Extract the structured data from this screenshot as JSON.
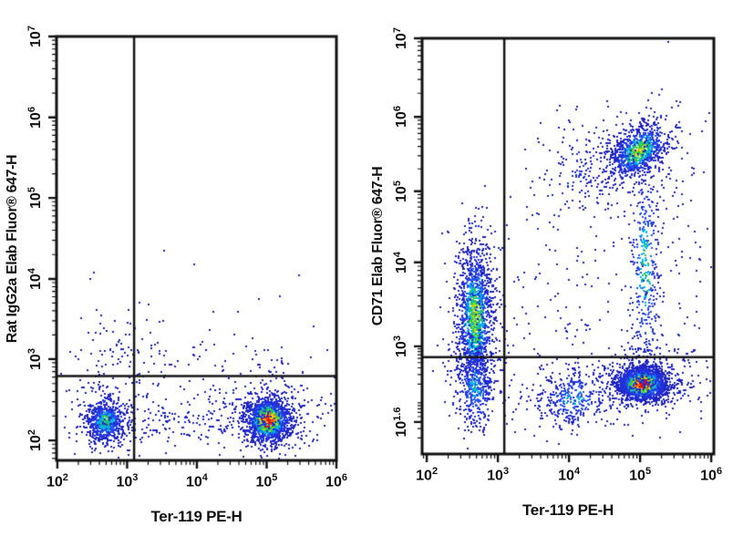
{
  "figure": {
    "background": "#ffffff",
    "axis_color": "#111111",
    "gate_color": "#161616",
    "density_colors": [
      "#1e22c0",
      "#2330d8",
      "#2850f0",
      "#00b4e6",
      "#30c846",
      "#a6e01e",
      "#ffc800",
      "#ff5a00",
      "#e80c00"
    ],
    "density_thresholds": [
      0.14,
      0.3,
      0.44,
      0.57,
      0.7,
      0.79,
      0.86,
      0.93
    ],
    "tick_base": "10"
  },
  "chart_data": [
    {
      "type": "scatter",
      "subtype": "flow_cytometry_density_plot",
      "title": "",
      "xlabel": "Ter-119 PE-H",
      "ylabel": "Rat IgG2a Elab Fluor® 647-H",
      "x_scale": "log10",
      "y_scale": "log10",
      "grid": false,
      "legend": false,
      "x_ticks": [
        {
          "exp": "2",
          "log": 2
        },
        {
          "exp": "3",
          "log": 3
        },
        {
          "exp": "4",
          "log": 4
        },
        {
          "exp": "5",
          "log": 5
        },
        {
          "exp": "6",
          "log": 6
        }
      ],
      "y_ticks": [
        {
          "exp": "2",
          "log": 2
        },
        {
          "exp": "3",
          "log": 3
        },
        {
          "exp": "4",
          "log": 4
        },
        {
          "exp": "5",
          "log": 5
        },
        {
          "exp": "6",
          "log": 6
        },
        {
          "exp": "7",
          "log": 7
        }
      ],
      "x_map": {
        "logs": [
          2,
          6
        ],
        "fracs": [
          0.003,
          1.0
        ]
      },
      "y_map": {
        "logs": [
          2,
          3,
          4,
          5,
          6,
          7
        ],
        "fracs": [
          0.047,
          0.239,
          0.428,
          0.619,
          0.809,
          1.0
        ]
      },
      "x_domain": [
        1.99,
        6.0
      ],
      "y_domain": [
        1.75,
        7.02
      ],
      "gates": {
        "x_log": 3.1,
        "y_log": 2.79
      },
      "clusters": [
        {
          "name": "ter119neg-low-main",
          "n": 650,
          "cx": 2.68,
          "cy": 2.24,
          "sx": 0.14,
          "sy": 0.12,
          "rot": 0,
          "peak": 0.6
        },
        {
          "name": "ter119neg-low-halo",
          "n": 180,
          "cx": 2.68,
          "cy": 2.28,
          "sx": 0.28,
          "sy": 0.26,
          "rot": 0,
          "peak": 0.22
        },
        {
          "name": "ter119pos-low-main",
          "n": 1500,
          "cx": 5.01,
          "cy": 2.26,
          "sx": 0.15,
          "sy": 0.13,
          "rot": 0,
          "peak": 1.0
        },
        {
          "name": "ter119pos-low-halo",
          "n": 320,
          "cx": 5.01,
          "cy": 2.28,
          "sx": 0.3,
          "sy": 0.26,
          "rot": 0,
          "peak": 0.28
        },
        {
          "name": "low-band-between",
          "n": 150,
          "cx": 3.85,
          "cy": 2.25,
          "sx": 0.55,
          "sy": 0.16,
          "rot": 0,
          "peak": 0.14
        },
        {
          "name": "above-gate-left",
          "n": 70,
          "cx": 2.8,
          "cy": 3.0,
          "sx": 0.3,
          "sy": 0.28,
          "rot": 0,
          "peak": 0.12
        },
        {
          "name": "above-gate-band",
          "n": 100,
          "cx": 4.2,
          "cy": 2.98,
          "sx": 1.05,
          "sy": 0.22,
          "rot": 0,
          "peak": 0.1
        },
        {
          "name": "rare-high-dots",
          "n": 12,
          "cx": 4.1,
          "cy": 4.0,
          "sx": 1.0,
          "sy": 0.4,
          "rot": 0,
          "peak": 0.08
        },
        {
          "name": "right-tail",
          "n": 55,
          "cx": 5.55,
          "cy": 2.3,
          "sx": 0.35,
          "sy": 0.2,
          "rot": 0,
          "peak": 0.12
        }
      ]
    },
    {
      "type": "scatter",
      "subtype": "flow_cytometry_density_plot",
      "title": "",
      "xlabel": "Ter-119 PE-H",
      "ylabel": "CD71 Elab Fluor® 647-H",
      "x_scale": "log10",
      "y_scale": "log10",
      "grid": false,
      "legend": false,
      "x_ticks": [
        {
          "exp": "2",
          "log": 2
        },
        {
          "exp": "3",
          "log": 3
        },
        {
          "exp": "4",
          "log": 4
        },
        {
          "exp": "5",
          "log": 5
        },
        {
          "exp": "6",
          "log": 6
        }
      ],
      "y_ticks": [
        {
          "exp": "1.6",
          "log": 1.6
        },
        {
          "exp": "3",
          "log": 3
        },
        {
          "exp": "4",
          "log": 4
        },
        {
          "exp": "5",
          "log": 5
        },
        {
          "exp": "6",
          "log": 6
        },
        {
          "exp": "7",
          "log": 7
        }
      ],
      "x_map": {
        "logs": [
          2,
          6
        ],
        "fracs": [
          0.016,
          0.991
        ]
      },
      "y_map": {
        "logs": [
          1.0,
          1.6,
          3,
          4,
          5,
          6,
          7
        ],
        "fracs": [
          0,
          0.077,
          0.259,
          0.461,
          0.632,
          0.811,
          1.0
        ]
      },
      "x_domain": [
        1.95,
        6.01
      ],
      "y_domain": [
        1.0,
        7.0
      ],
      "gates": {
        "x_log": 3.09,
        "y_log": 2.8
      },
      "clusters": [
        {
          "name": "ter119neg-cd71pos-main",
          "n": 1300,
          "cx": 2.67,
          "cy": 3.35,
          "sx": 0.12,
          "sy": 0.45,
          "rot": 0,
          "peak": 0.72
        },
        {
          "name": "ter119neg-halo",
          "n": 250,
          "cx": 2.67,
          "cy": 3.3,
          "sx": 0.22,
          "sy": 0.65,
          "rot": 0,
          "peak": 0.2
        },
        {
          "name": "ter119neg-belowgate",
          "n": 420,
          "cx": 2.67,
          "cy": 2.25,
          "sx": 0.13,
          "sy": 0.38,
          "rot": 0,
          "peak": 0.5
        },
        {
          "name": "mid-low-cluster",
          "n": 330,
          "cx": 4.05,
          "cy": 2.05,
          "sx": 0.26,
          "sy": 0.28,
          "rot": 0,
          "peak": 0.45
        },
        {
          "name": "ter119pos-cd71neg-core",
          "n": 2000,
          "cx": 5.02,
          "cy": 2.32,
          "sx": 0.16,
          "sy": 0.15,
          "rot": 0,
          "peak": 1.0
        },
        {
          "name": "ter119pos-cd71neg-halo",
          "n": 380,
          "cx": 5.02,
          "cy": 2.35,
          "sx": 0.32,
          "sy": 0.3,
          "rot": 0,
          "peak": 0.28
        },
        {
          "name": "ter119pos-cd71pos-top",
          "n": 850,
          "cx": 4.97,
          "cy": 5.55,
          "sx": 0.23,
          "sy": 0.14,
          "rot": 38,
          "peak": 0.72
        },
        {
          "name": "top-halo",
          "n": 220,
          "cx": 4.95,
          "cy": 5.5,
          "sx": 0.4,
          "sy": 0.3,
          "rot": 30,
          "peak": 0.2
        },
        {
          "name": "vertical-bridge",
          "n": 420,
          "cx": 5.06,
          "cy": 4.0,
          "sx": 0.11,
          "sy": 0.75,
          "rot": 0,
          "peak": 0.55
        },
        {
          "name": "upper-mid-scatter",
          "n": 160,
          "cx": 4.15,
          "cy": 5.3,
          "sx": 0.3,
          "sy": 0.35,
          "rot": 0,
          "peak": 0.18
        },
        {
          "name": "mid-sparse",
          "n": 130,
          "cx": 3.8,
          "cy": 3.4,
          "sx": 0.55,
          "sy": 0.65,
          "rot": 0,
          "peak": 0.1
        },
        {
          "name": "right-side-sparse",
          "n": 110,
          "cx": 5.55,
          "cy": 3.6,
          "sx": 0.3,
          "sy": 1.1,
          "rot": 0,
          "peak": 0.1
        },
        {
          "name": "bottom-sparse",
          "n": 60,
          "cx": 3.6,
          "cy": 2.05,
          "sx": 0.45,
          "sy": 0.3,
          "rot": 0,
          "peak": 0.1
        }
      ]
    }
  ]
}
